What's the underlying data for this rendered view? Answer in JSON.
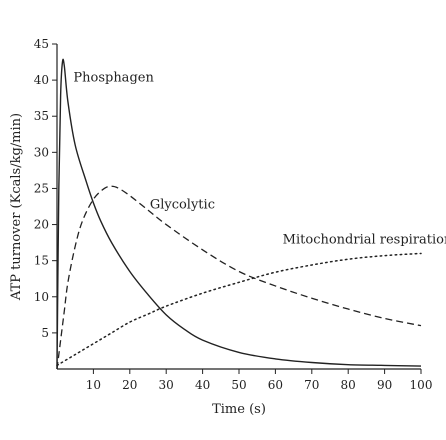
{
  "chart_data": {
    "type": "line",
    "title": "",
    "xlabel": "Time (s)",
    "ylabel": "ATP turnover (Kcals/kg/min)",
    "xlim": [
      0,
      100
    ],
    "ylim": [
      0,
      45
    ],
    "x_ticks": [
      10,
      20,
      30,
      40,
      50,
      60,
      70,
      80,
      90,
      100
    ],
    "y_ticks": [
      5,
      10,
      15,
      20,
      25,
      30,
      35,
      40,
      45
    ],
    "grid": false,
    "legend": "none",
    "series": [
      {
        "name": "Phosphagen",
        "line_style": "solid",
        "x": [
          0,
          0.5,
          1,
          1.5,
          2,
          3,
          5,
          8,
          10,
          12,
          15,
          20,
          25,
          30,
          35,
          40,
          50,
          60,
          70,
          80,
          90,
          100
        ],
        "y": [
          0,
          25,
          38,
          42.5,
          42,
          37,
          31,
          26,
          23,
          20.5,
          17.5,
          13.5,
          10.3,
          7.5,
          5.5,
          4,
          2.3,
          1.4,
          0.9,
          0.6,
          0.5,
          0.4
        ]
      },
      {
        "name": "Glycolytic",
        "line_style": "dashed",
        "x": [
          0,
          1,
          2,
          3,
          5,
          7,
          10,
          13,
          15,
          17,
          20,
          25,
          30,
          40,
          50,
          60,
          70,
          80,
          90,
          100
        ],
        "y": [
          0,
          4,
          8,
          12,
          17,
          20.5,
          23.5,
          25,
          25.3,
          25,
          24,
          22,
          20,
          16.5,
          13.5,
          11.5,
          9.8,
          8.3,
          7,
          6
        ]
      },
      {
        "name": "Mitochondrial respiration",
        "line_style": "dotted",
        "x": [
          0,
          5,
          10,
          15,
          20,
          25,
          30,
          40,
          50,
          60,
          70,
          80,
          90,
          100
        ],
        "y": [
          0.5,
          2,
          3.5,
          5,
          6.5,
          7.6,
          8.7,
          10.5,
          12,
          13.4,
          14.4,
          15.2,
          15.7,
          16
        ]
      }
    ]
  }
}
